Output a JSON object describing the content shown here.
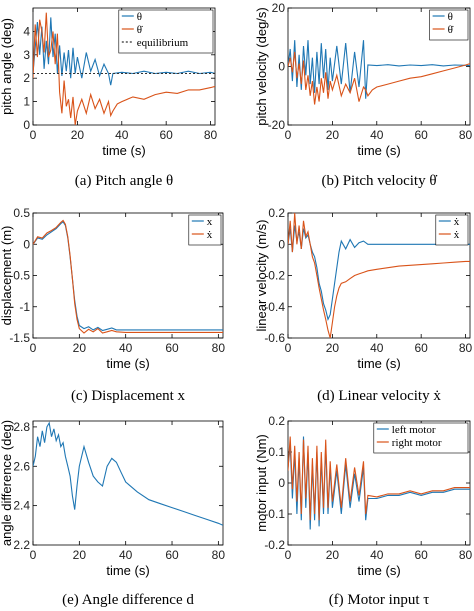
{
  "colors": {
    "blue": "#1f77b4",
    "orange": "#d95319",
    "equilibrium": "#333333"
  },
  "chart_data": [
    {
      "type": "line",
      "caption": "(a) Pitch angle θ",
      "xlabel": "time (s)",
      "ylabel": "pitch angle (deg)",
      "xlim": [
        0,
        82
      ],
      "ylim": [
        0,
        5
      ],
      "xticks": [
        0,
        20,
        40,
        60,
        80
      ],
      "yticks": [
        0,
        1,
        2,
        3,
        4
      ],
      "legend_position": "top-right",
      "legend": [
        "θ",
        "θ̇",
        "equilibrium"
      ],
      "series": [
        {
          "name": "θ",
          "color": "blue",
          "x": [
            0,
            1,
            2,
            3,
            4,
            5,
            6,
            7,
            8,
            9,
            10,
            11,
            12,
            13,
            14,
            15,
            16,
            17,
            18,
            19,
            20,
            22,
            24,
            26,
            28,
            30,
            32,
            34,
            35,
            36,
            40,
            45,
            50,
            55,
            60,
            65,
            70,
            75,
            80,
            82
          ],
          "y": [
            2.2,
            3.3,
            4.4,
            3.0,
            4.2,
            2.4,
            3.6,
            2.6,
            4.6,
            2.9,
            3.9,
            2.2,
            3.4,
            2.1,
            3.1,
            2.3,
            3.2,
            2.0,
            3.3,
            2.2,
            2.9,
            2.0,
            3.1,
            2.3,
            2.8,
            2.1,
            2.6,
            2.2,
            1.7,
            2.2,
            2.25,
            2.2,
            2.3,
            2.2,
            2.25,
            2.2,
            2.3,
            2.2,
            2.25,
            2.2
          ]
        },
        {
          "name": "θ̇",
          "color": "orange",
          "x": [
            0,
            1,
            2,
            3,
            4,
            5,
            6,
            7,
            8,
            9,
            10,
            11,
            12,
            13,
            14,
            15,
            16,
            17,
            18,
            19,
            20,
            22,
            24,
            26,
            28,
            30,
            32,
            34,
            35,
            36,
            38,
            40,
            45,
            50,
            55,
            60,
            65,
            70,
            75,
            80,
            82
          ],
          "y": [
            2.0,
            4.3,
            2.9,
            4.5,
            4.0,
            3.1,
            4.8,
            2.9,
            3.2,
            4.0,
            2.6,
            3.9,
            1.4,
            0.5,
            1.9,
            0.8,
            1.1,
            0.3,
            1.2,
            0.0,
            0.6,
            1.1,
            0.5,
            1.3,
            0.7,
            1.1,
            0.5,
            1.0,
            0.4,
            0.6,
            0.9,
            1.0,
            1.2,
            1.1,
            1.3,
            1.4,
            1.35,
            1.5,
            1.5,
            1.6,
            1.65
          ]
        },
        {
          "name": "equilibrium",
          "color": "equilibrium",
          "dashed": true,
          "x": [
            0,
            82
          ],
          "y": [
            2.2,
            2.2
          ]
        }
      ]
    },
    {
      "type": "line",
      "caption": "(b) Pitch velocity θ̇",
      "xlabel": "time (s)",
      "ylabel": "pitch velocity (deg/s)",
      "xlim": [
        0,
        82
      ],
      "ylim": [
        -20,
        20
      ],
      "xticks": [
        0,
        20,
        40,
        60,
        80
      ],
      "yticks": [
        -20,
        0,
        20
      ],
      "legend_position": "top-right",
      "legend": [
        "θ",
        "θ̇"
      ],
      "series": [
        {
          "name": "θ",
          "color": "blue",
          "x": [
            0,
            1,
            2,
            3,
            4,
            5,
            6,
            7,
            8,
            9,
            10,
            11,
            12,
            13,
            14,
            15,
            16,
            17,
            18,
            19,
            20,
            22,
            24,
            26,
            28,
            30,
            32,
            34,
            35,
            36,
            40,
            45,
            50,
            55,
            60,
            65,
            70,
            75,
            80,
            82
          ],
          "y": [
            0,
            6,
            -5,
            9,
            -7,
            4,
            -8,
            7,
            -3,
            9,
            -6,
            3,
            -9,
            5,
            -6,
            8,
            -4,
            6,
            -8,
            3,
            -5,
            7,
            -6,
            8,
            -9,
            5,
            -7,
            9,
            -11,
            0.5,
            0.3,
            0.6,
            0.2,
            0.5,
            0.3,
            0.6,
            0.2,
            0.5,
            0.4,
            0.3
          ]
        },
        {
          "name": "θ̇",
          "color": "orange",
          "x": [
            0,
            1,
            2,
            3,
            4,
            5,
            6,
            7,
            8,
            9,
            10,
            11,
            12,
            13,
            14,
            15,
            16,
            17,
            18,
            19,
            20,
            22,
            24,
            26,
            28,
            30,
            32,
            34,
            35,
            36,
            38,
            40,
            45,
            50,
            55,
            60,
            65,
            70,
            75,
            80,
            82
          ],
          "y": [
            0,
            3,
            -2,
            5,
            -4,
            1,
            -6,
            2,
            -8,
            -3,
            -10,
            -5,
            -13,
            -7,
            -12,
            -4,
            -9,
            -2,
            -11,
            -5,
            -8,
            -3,
            -10,
            -6,
            -9,
            -4,
            -12,
            -7,
            -8,
            -10,
            -8,
            -7,
            -6,
            -5,
            -4,
            -3.5,
            -2.5,
            -1.5,
            -0.5,
            0.5,
            1.0
          ]
        }
      ]
    },
    {
      "type": "line",
      "caption": "(c) Displacement x",
      "xlabel": "time (s)",
      "ylabel": "displacement (m)",
      "xlim": [
        0,
        82
      ],
      "ylim": [
        -1.5,
        0.5
      ],
      "xticks": [
        0,
        20,
        40,
        60,
        80
      ],
      "yticks": [
        -1.5,
        -1,
        -0.5,
        0,
        0.5
      ],
      "legend_position": "top-right",
      "legend": [
        "x",
        "ẋ"
      ],
      "series": [
        {
          "name": "x",
          "color": "blue",
          "x": [
            0,
            2,
            4,
            6,
            8,
            10,
            12,
            13,
            14,
            15,
            16,
            17,
            18,
            19,
            20,
            22,
            24,
            26,
            28,
            30,
            32,
            34,
            36,
            40,
            50,
            60,
            70,
            80,
            82
          ],
          "y": [
            0,
            0.1,
            0.08,
            0.15,
            0.2,
            0.25,
            0.33,
            0.36,
            0.3,
            0.1,
            -0.2,
            -0.55,
            -0.9,
            -1.15,
            -1.3,
            -1.35,
            -1.32,
            -1.37,
            -1.33,
            -1.38,
            -1.36,
            -1.34,
            -1.37,
            -1.37,
            -1.37,
            -1.37,
            -1.37,
            -1.37,
            -1.37
          ]
        },
        {
          "name": "ẋ",
          "color": "orange",
          "x": [
            0,
            2,
            4,
            6,
            8,
            10,
            12,
            13,
            14,
            15,
            16,
            17,
            18,
            19,
            20,
            22,
            24,
            26,
            28,
            30,
            32,
            34,
            36,
            40,
            50,
            60,
            70,
            80,
            82
          ],
          "y": [
            0,
            0.12,
            0.1,
            0.18,
            0.22,
            0.27,
            0.35,
            0.38,
            0.32,
            0.12,
            -0.18,
            -0.55,
            -0.95,
            -1.2,
            -1.35,
            -1.42,
            -1.36,
            -1.4,
            -1.35,
            -1.42,
            -1.4,
            -1.38,
            -1.4,
            -1.41,
            -1.41,
            -1.41,
            -1.41,
            -1.41,
            -1.41
          ]
        }
      ]
    },
    {
      "type": "line",
      "caption": "(d) Linear velocity ẋ",
      "xlabel": "time (s)",
      "ylabel": "linear velocity (m/s)",
      "xlim": [
        0,
        82
      ],
      "ylim": [
        -0.6,
        0.2
      ],
      "xticks": [
        0,
        20,
        40,
        60,
        80
      ],
      "yticks": [
        -0.6,
        -0.4,
        -0.2,
        0,
        0.2
      ],
      "legend_position": "top-right",
      "legend": [
        "ẋ",
        "ẋ"
      ],
      "series": [
        {
          "name": "ẋ",
          "color": "blue",
          "x": [
            0,
            1,
            2,
            3,
            4,
            5,
            6,
            7,
            8,
            9,
            10,
            11,
            12,
            13,
            14,
            15,
            16,
            17,
            18,
            19,
            20,
            21,
            22,
            23,
            24,
            26,
            28,
            30,
            32,
            34,
            36,
            40,
            50,
            60,
            70,
            80,
            82
          ],
          "y": [
            0.0,
            0.1,
            -0.05,
            0.12,
            0.02,
            0.08,
            -0.03,
            0.1,
            0.04,
            0.06,
            0.0,
            -0.05,
            -0.08,
            -0.15,
            -0.25,
            -0.3,
            -0.38,
            -0.42,
            -0.48,
            -0.45,
            -0.35,
            -0.25,
            -0.15,
            -0.05,
            0.02,
            -0.03,
            0.03,
            -0.02,
            0.01,
            0.02,
            0.0,
            0.0,
            0.0,
            0.0,
            0.0,
            0.0,
            0.0
          ]
        },
        {
          "name": "ẋ",
          "color": "orange",
          "x": [
            0,
            1,
            2,
            3,
            4,
            5,
            6,
            7,
            8,
            9,
            10,
            11,
            12,
            13,
            14,
            15,
            16,
            17,
            18,
            19,
            20,
            21,
            22,
            23,
            24,
            26,
            28,
            30,
            32,
            34,
            36,
            40,
            45,
            50,
            55,
            60,
            65,
            70,
            75,
            80,
            82
          ],
          "y": [
            0.0,
            0.15,
            -0.05,
            0.2,
            0.0,
            0.12,
            -0.03,
            0.15,
            0.05,
            0.08,
            0.0,
            -0.08,
            -0.12,
            -0.2,
            -0.28,
            -0.35,
            -0.42,
            -0.48,
            -0.55,
            -0.6,
            -0.5,
            -0.4,
            -0.33,
            -0.28,
            -0.25,
            -0.24,
            -0.22,
            -0.2,
            -0.19,
            -0.18,
            -0.17,
            -0.16,
            -0.15,
            -0.14,
            -0.135,
            -0.13,
            -0.125,
            -0.12,
            -0.115,
            -0.11,
            -0.11
          ]
        }
      ]
    },
    {
      "type": "line",
      "caption": "(e) Angle difference d",
      "xlabel": "time (s)",
      "ylabel": "angle difference (deg)",
      "xlim": [
        0,
        82
      ],
      "ylim": [
        2.2,
        2.83
      ],
      "xticks": [
        0,
        20,
        40,
        60,
        80
      ],
      "yticks": [
        2.2,
        2.4,
        2.6,
        2.8
      ],
      "series": [
        {
          "name": "d",
          "color": "blue",
          "x": [
            0,
            1,
            2,
            3,
            4,
            5,
            6,
            7,
            8,
            9,
            10,
            11,
            12,
            13,
            14,
            15,
            16,
            17,
            18,
            19,
            20,
            22,
            24,
            26,
            28,
            30,
            32,
            34,
            36,
            38,
            40,
            45,
            50,
            55,
            60,
            65,
            70,
            75,
            80,
            82
          ],
          "y": [
            2.6,
            2.65,
            2.75,
            2.7,
            2.78,
            2.72,
            2.8,
            2.82,
            2.75,
            2.79,
            2.73,
            2.76,
            2.7,
            2.72,
            2.65,
            2.6,
            2.55,
            2.45,
            2.38,
            2.5,
            2.6,
            2.7,
            2.62,
            2.55,
            2.52,
            2.5,
            2.6,
            2.64,
            2.62,
            2.57,
            2.52,
            2.47,
            2.43,
            2.41,
            2.39,
            2.37,
            2.35,
            2.33,
            2.31,
            2.3
          ]
        }
      ]
    },
    {
      "type": "line",
      "caption": "(f) Motor input τ",
      "xlabel": "time (s)",
      "ylabel": "motor input (Nm)",
      "xlim": [
        0,
        82
      ],
      "ylim": [
        -0.2,
        0.2
      ],
      "xticks": [
        0,
        20,
        40,
        60,
        80
      ],
      "yticks": [
        -0.2,
        -0.1,
        0,
        0.1,
        0.2
      ],
      "legend_position": "top-right",
      "legend": [
        "left motor",
        "right motor"
      ],
      "series": [
        {
          "name": "left motor",
          "color": "blue",
          "x": [
            0,
            1,
            2,
            3,
            4,
            5,
            6,
            7,
            8,
            9,
            10,
            11,
            12,
            13,
            14,
            15,
            16,
            17,
            18,
            19,
            20,
            22,
            24,
            26,
            28,
            30,
            32,
            34,
            35,
            36,
            40,
            45,
            50,
            55,
            60,
            65,
            70,
            75,
            80,
            82
          ],
          "y": [
            0.05,
            0.12,
            -0.05,
            0.1,
            -0.1,
            0.08,
            -0.12,
            0.15,
            -0.08,
            0.1,
            -0.15,
            0.06,
            -0.12,
            0.1,
            -0.14,
            0.08,
            -0.1,
            0.12,
            -0.1,
            0.05,
            -0.08,
            0.04,
            -0.1,
            0.06,
            -0.08,
            0.03,
            -0.06,
            0.05,
            -0.12,
            -0.05,
            -0.05,
            -0.04,
            -0.04,
            -0.03,
            -0.04,
            -0.03,
            -0.03,
            -0.02,
            -0.02,
            -0.02
          ]
        },
        {
          "name": "right motor",
          "color": "orange",
          "x": [
            0,
            1,
            2,
            3,
            4,
            5,
            6,
            7,
            8,
            9,
            10,
            11,
            12,
            13,
            14,
            15,
            16,
            17,
            18,
            19,
            20,
            22,
            24,
            26,
            28,
            30,
            32,
            34,
            35,
            36,
            40,
            45,
            50,
            55,
            60,
            65,
            70,
            75,
            80,
            82
          ],
          "y": [
            0.04,
            0.15,
            -0.02,
            0.12,
            -0.06,
            0.1,
            -0.1,
            0.14,
            -0.05,
            0.12,
            -0.12,
            0.08,
            -0.1,
            0.12,
            -0.12,
            0.1,
            -0.08,
            0.14,
            -0.08,
            0.07,
            -0.06,
            0.06,
            -0.08,
            0.08,
            -0.06,
            0.05,
            -0.04,
            0.07,
            -0.1,
            -0.04,
            -0.045,
            -0.035,
            -0.035,
            -0.025,
            -0.035,
            -0.025,
            -0.025,
            -0.015,
            -0.015,
            -0.015
          ]
        }
      ]
    }
  ]
}
